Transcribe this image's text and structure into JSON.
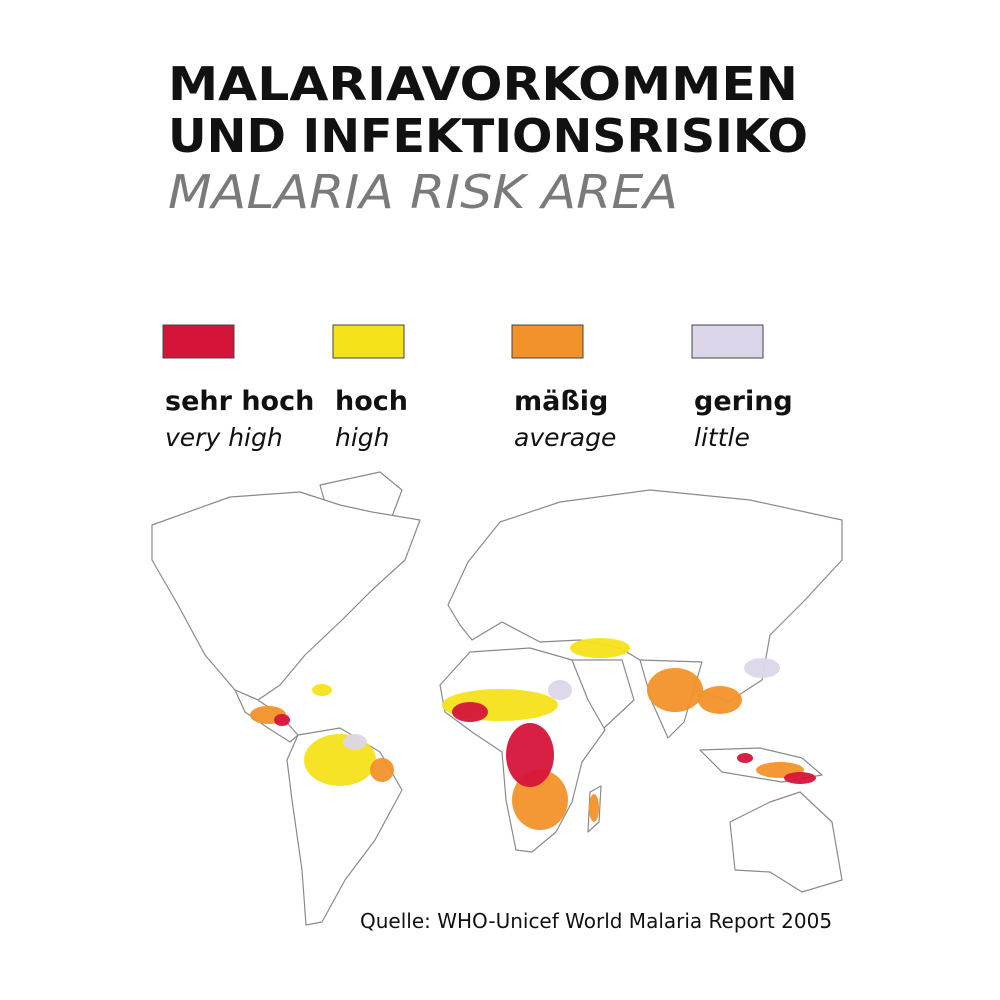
{
  "title": [
    "MALARIAVORKOMMEN",
    "UND INFEKTIONSRISIKO"
  ],
  "subtitle": "MALARIA RISK AREA",
  "legend": [
    {
      "label_de": "sehr hoch",
      "label_en": "very high",
      "color": "#d5143a"
    },
    {
      "label_de": "hoch",
      "label_en": "high",
      "color": "#f5e21a"
    },
    {
      "label_de": "mäßig",
      "label_en": "average",
      "color": "#f2922a"
    },
    {
      "label_de": "gering",
      "label_en": "little",
      "color": "#ddd6ea"
    }
  ],
  "source": "Quelle: WHO-Unicef World Malaria Report 2005"
}
